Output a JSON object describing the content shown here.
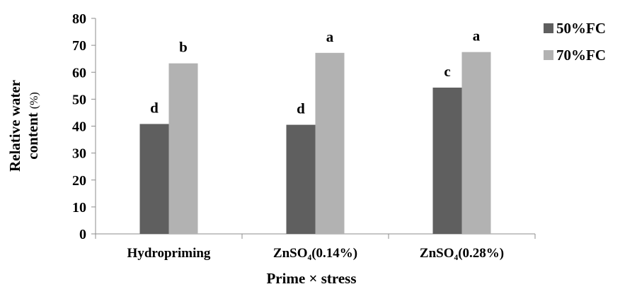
{
  "chart_data": {
    "type": "bar",
    "categories": [
      "Hydropriming",
      "ZnSO₄(0.14%)",
      "ZnSO₄(0.28%)"
    ],
    "series": [
      {
        "name": "50%FC",
        "color": "#5f5f5f",
        "values": [
          40.8,
          40.5,
          54.3
        ],
        "labels": [
          "d",
          "d",
          "c"
        ]
      },
      {
        "name": "70%FC",
        "color": "#b2b2b2",
        "values": [
          63.3,
          67.2,
          67.5
        ],
        "labels": [
          "b",
          "a",
          "a"
        ]
      }
    ],
    "xlabel": "Prime × stress",
    "ylabel_main": "Relative water",
    "ylabel_second": "content",
    "ylabel_unit": "(%)",
    "ylim": [
      0,
      80
    ],
    "yticks": [
      0,
      10,
      20,
      30,
      40,
      50,
      60,
      70,
      80
    ],
    "grid": false,
    "legend_position": "top-right"
  }
}
